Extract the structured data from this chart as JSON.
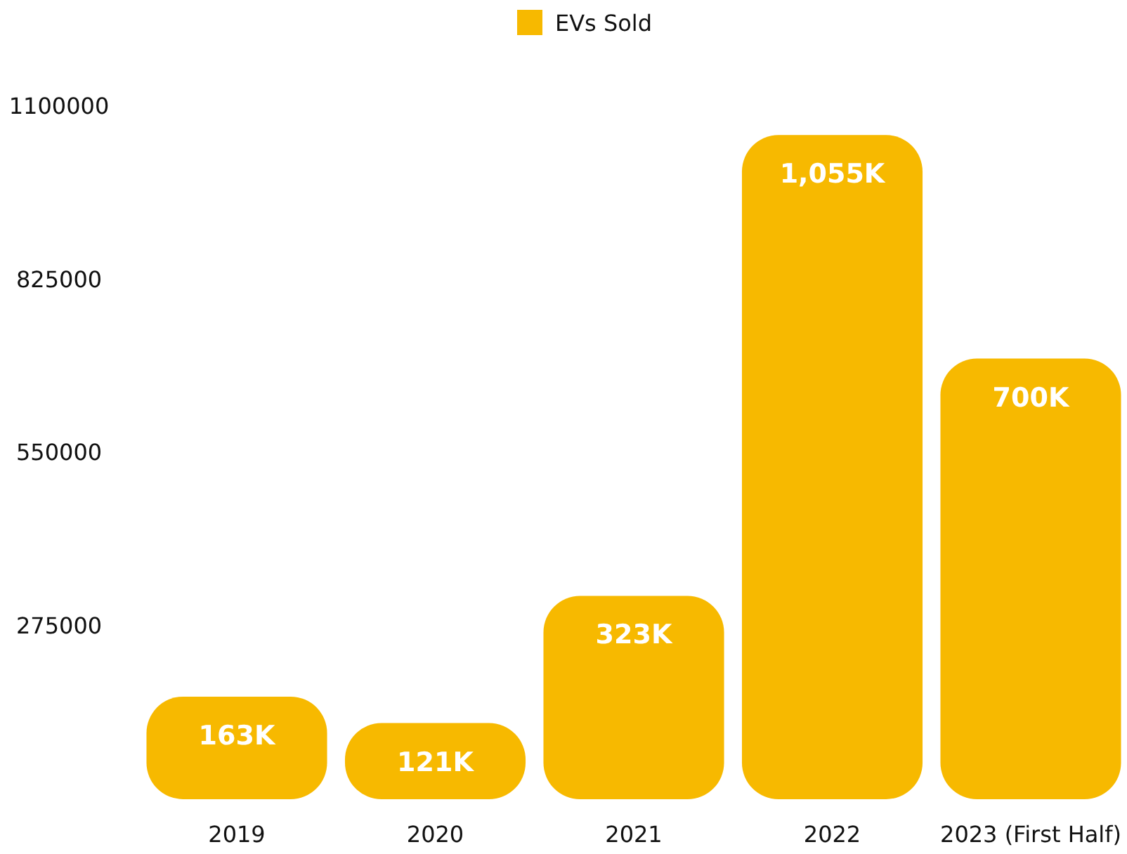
{
  "chart_data": {
    "type": "bar",
    "categories": [
      "2019",
      "2020",
      "2021",
      "2022",
      "2023 (First Half)"
    ],
    "series": [
      {
        "name": "EVs Sold",
        "color": "#f7b900",
        "values": [
          163000,
          121000,
          323000,
          1055000,
          700000
        ],
        "value_labels": [
          "163K",
          "121K",
          "323K",
          "1,055K",
          "700K"
        ]
      }
    ],
    "ylim": [
      0,
      1100000
    ],
    "yticks": [
      275000,
      550000,
      825000,
      1100000
    ],
    "grid": false,
    "legend": "top"
  }
}
